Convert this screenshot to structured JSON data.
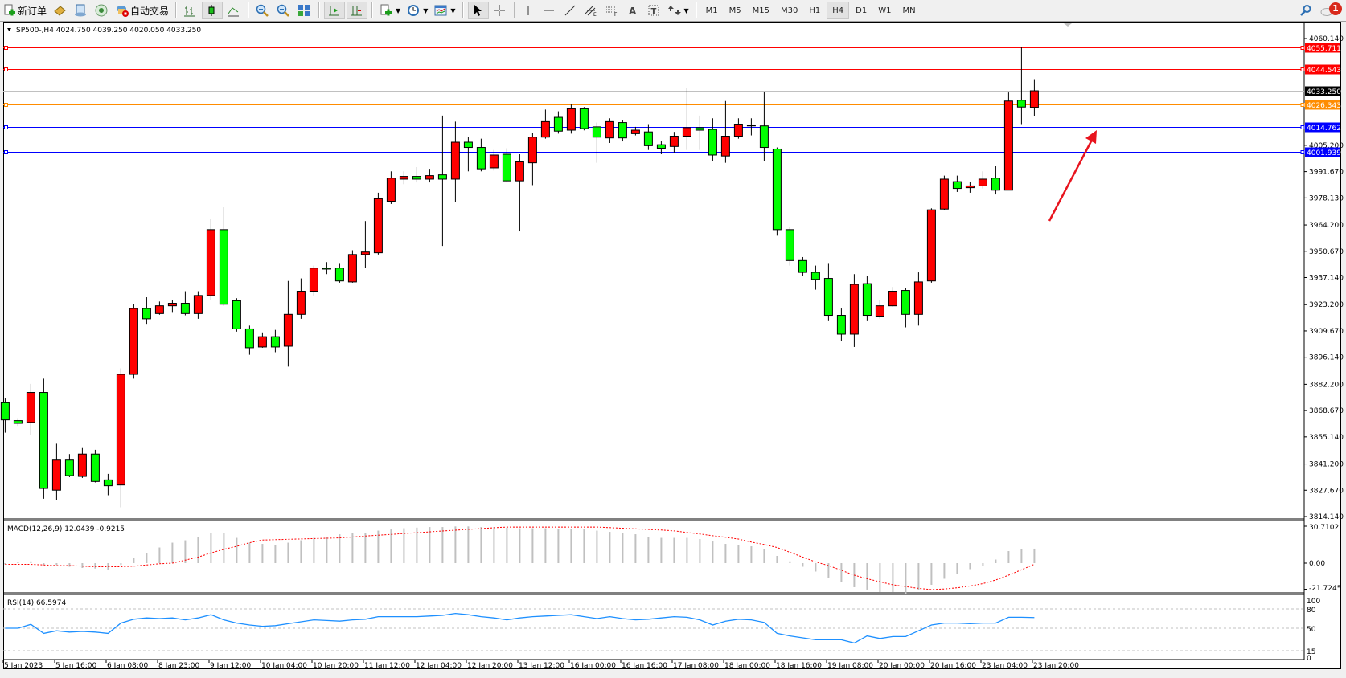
{
  "toolbar": {
    "new_order": "新订单",
    "auto_trading": "自动交易",
    "icons": [
      "new-order-icon",
      "market-watch-icon",
      "navigator-icon",
      "signals-icon",
      "auto-trading-icon",
      "bar-chart-icon",
      "candlestick-icon",
      "line-chart-icon",
      "zoom-in-icon",
      "zoom-out-icon",
      "tile-windows-icon",
      "chart-shift-icon",
      "autoscroll-icon",
      "indicators-icon",
      "periods-icon",
      "templates-icon",
      "cursor-icon",
      "crosshair-icon",
      "vertical-line-icon",
      "horizontal-line-icon",
      "trendline-icon",
      "equidistant-channel-icon",
      "fibonacci-icon",
      "text-icon",
      "text-label-icon",
      "arrows-icon",
      "search-icon",
      "notifications-icon"
    ],
    "timeframes": [
      "M1",
      "M5",
      "M15",
      "M30",
      "H1",
      "H4",
      "D1",
      "W1",
      "MN"
    ],
    "active_timeframe": "H4",
    "notification_count": "1"
  },
  "chart": {
    "header": "SP500-,H4  4024.750 4039.250 4020.050 4033.250",
    "symbol": "SP500-",
    "timeframe": "H4",
    "colors": {
      "bull": "#ff0000",
      "bear": "#00ff00",
      "wick": "#000000",
      "macd_hist": "#c0c0c0",
      "macd_signal": "#ff0000",
      "rsi": "#1e90ff",
      "arrow": "#e8141e"
    },
    "price_axis": [
      "4060.140",
      "4005.200",
      "3991.670",
      "3978.130",
      "3964.200",
      "3950.670",
      "3937.140",
      "3923.200",
      "3909.670",
      "3896.140",
      "3882.200",
      "3868.670",
      "3855.140",
      "3841.200",
      "3827.670",
      "3814.140"
    ],
    "price_range": [
      3814.14,
      4060.14
    ],
    "levels": [
      {
        "price": 4055.711,
        "label": "4055.711",
        "color": "#ff0000"
      },
      {
        "price": 4044.543,
        "label": "4044.543",
        "color": "#ff0000"
      },
      {
        "price": 4033.25,
        "label": "4033.250",
        "color": "#c0c0c0",
        "flag": "#000000"
      },
      {
        "price": 4026.343,
        "label": "4026.343",
        "color": "#ff8c00"
      },
      {
        "price": 4014.762,
        "label": "4014.762",
        "color": "#0000ff"
      },
      {
        "price": 4001.939,
        "label": "4001.939",
        "color": "#0000ff"
      }
    ],
    "time_axis": [
      "5 Jan 2023",
      "5 Jan 16:00",
      "6 Jan 08:00",
      "8 Jan 23:00",
      "9 Jan 12:00",
      "10 Jan 04:00",
      "10 Jan 20:00",
      "11 Jan 12:00",
      "12 Jan 04:00",
      "12 Jan 20:00",
      "13 Jan 12:00",
      "16 Jan 00:00",
      "16 Jan 16:00",
      "17 Jan 08:00",
      "18 Jan 00:00",
      "18 Jan 16:00",
      "19 Jan 08:00",
      "20 Jan 00:00",
      "20 Jan 16:00",
      "23 Jan 04:00",
      "23 Jan 20:00"
    ]
  },
  "chart_data": {
    "type": "candlestick",
    "ohlc": [
      [
        3872.7,
        3874.9,
        3857.3,
        3863.9
      ],
      [
        3863.5,
        3864.8,
        3860.8,
        3862.1
      ],
      [
        3862.6,
        3882.4,
        3856.0,
        3878.0
      ],
      [
        3878.0,
        3885.1,
        3823.3,
        3828.6
      ],
      [
        3827.7,
        3851.6,
        3822.5,
        3843.2
      ],
      [
        3843.2,
        3846.3,
        3834.4,
        3835.2
      ],
      [
        3834.8,
        3849.4,
        3834.0,
        3846.3
      ],
      [
        3846.3,
        3848.5,
        3831.7,
        3832.2
      ],
      [
        3833.0,
        3836.1,
        3825.1,
        3830.0
      ],
      [
        3830.4,
        3890.4,
        3818.9,
        3887.3
      ],
      [
        3887.3,
        3923.4,
        3885.1,
        3921.2
      ],
      [
        3921.2,
        3927.0,
        3913.3,
        3915.9
      ],
      [
        3918.6,
        3924.8,
        3918.0,
        3922.6
      ],
      [
        3922.6,
        3925.6,
        3919.0,
        3923.9
      ],
      [
        3923.9,
        3930.1,
        3917.7,
        3918.6
      ],
      [
        3918.6,
        3930.1,
        3915.9,
        3927.9
      ],
      [
        3927.9,
        3967.5,
        3925.6,
        3961.8
      ],
      [
        3961.8,
        3973.3,
        3922.6,
        3923.4
      ],
      [
        3925.2,
        3926.5,
        3909.3,
        3910.7
      ],
      [
        3910.7,
        3912.4,
        3897.4,
        3901.0
      ],
      [
        3901.4,
        3908.9,
        3901.0,
        3906.7
      ],
      [
        3906.7,
        3910.2,
        3898.7,
        3901.4
      ],
      [
        3901.8,
        3935.4,
        3891.3,
        3918.2
      ],
      [
        3918.2,
        3936.7,
        3915.9,
        3930.1
      ],
      [
        3930.1,
        3943.3,
        3927.9,
        3942.0
      ],
      [
        3942.0,
        3945.1,
        3938.9,
        3941.5
      ],
      [
        3942.0,
        3944.2,
        3934.5,
        3935.4
      ],
      [
        3934.9,
        3951.2,
        3934.5,
        3949.0
      ],
      [
        3949.0,
        3966.2,
        3942.0,
        3950.3
      ],
      [
        3949.9,
        3980.8,
        3949.0,
        3977.7
      ],
      [
        3976.4,
        3991.8,
        3975.0,
        3988.3
      ],
      [
        3987.8,
        3991.8,
        3985.2,
        3989.2
      ],
      [
        3989.2,
        3994.0,
        3986.1,
        3987.8
      ],
      [
        3987.8,
        3993.1,
        3986.1,
        3989.6
      ],
      [
        3990.0,
        4020.5,
        3953.4,
        3987.8
      ],
      [
        3987.8,
        4017.4,
        3975.9,
        4006.8
      ],
      [
        4006.8,
        4009.4,
        3991.8,
        4004.1
      ],
      [
        4004.1,
        4008.6,
        3991.8,
        3993.1
      ],
      [
        3993.6,
        4002.8,
        3992.2,
        4000.2
      ],
      [
        4000.6,
        4003.7,
        3986.1,
        3986.9
      ],
      [
        3986.9,
        4000.6,
        3960.9,
        3996.7
      ],
      [
        3996.2,
        4011.6,
        3984.7,
        4009.4
      ],
      [
        4009.4,
        4023.6,
        4008.6,
        4017.4
      ],
      [
        4019.6,
        4022.7,
        4011.2,
        4012.5
      ],
      [
        4013.0,
        4026.2,
        4011.2,
        4024.0
      ],
      [
        4024.0,
        4024.9,
        4012.9,
        4013.8
      ],
      [
        4014.7,
        4016.9,
        3996.2,
        4009.4
      ],
      [
        4009.0,
        4019.1,
        4006.4,
        4017.4
      ],
      [
        4016.9,
        4018.3,
        4007.2,
        4009.0
      ],
      [
        4011.2,
        4014.7,
        4010.3,
        4013.0
      ],
      [
        4012.1,
        4016.1,
        4002.8,
        4005.0
      ],
      [
        4005.5,
        4007.2,
        4000.6,
        4003.7
      ],
      [
        4004.6,
        4012.1,
        4001.5,
        4009.9
      ],
      [
        4009.9,
        4034.6,
        4002.8,
        4014.3
      ],
      [
        4014.3,
        4020.5,
        4002.8,
        4013.0
      ],
      [
        4013.4,
        4019.1,
        3997.1,
        4000.2
      ],
      [
        3999.7,
        4028.0,
        3996.2,
        4009.9
      ],
      [
        4009.9,
        4019.1,
        4008.6,
        4016.1
      ],
      [
        4015.6,
        4019.1,
        4010.3,
        4015.2
      ],
      [
        4015.2,
        4032.8,
        3997.1,
        4004.1
      ],
      [
        4003.3,
        4004.1,
        3958.7,
        3961.8
      ],
      [
        3961.8,
        3963.1,
        3943.3,
        3945.9
      ],
      [
        3945.9,
        3947.7,
        3938.0,
        3939.8
      ],
      [
        3939.8,
        3943.3,
        3930.9,
        3936.2
      ],
      [
        3936.7,
        3944.2,
        3915.1,
        3917.7
      ],
      [
        3917.7,
        3921.2,
        3904.5,
        3908.0
      ],
      [
        3908.0,
        3938.9,
        3901.4,
        3933.6
      ],
      [
        3934.0,
        3938.0,
        3915.1,
        3917.7
      ],
      [
        3917.3,
        3925.6,
        3916.0,
        3922.6
      ],
      [
        3922.6,
        3932.3,
        3922.1,
        3930.1
      ],
      [
        3930.5,
        3931.8,
        3911.5,
        3918.2
      ],
      [
        3918.2,
        3939.8,
        3912.4,
        3934.9
      ],
      [
        3935.4,
        3972.8,
        3934.5,
        3972.0
      ],
      [
        3972.4,
        3989.6,
        3972.0,
        3987.8
      ],
      [
        3986.5,
        3989.6,
        3981.2,
        3983.0
      ],
      [
        3983.4,
        3986.5,
        3980.8,
        3984.3
      ],
      [
        3984.3,
        3991.8,
        3983.0,
        3987.8
      ],
      [
        3988.3,
        3994.4,
        3979.9,
        3982.1
      ],
      [
        3982.1,
        4032.4,
        3982.1,
        4028.0
      ],
      [
        4028.4,
        4055.7,
        4016.1,
        4024.9
      ],
      [
        4024.75,
        4039.25,
        4020.05,
        4033.25
      ]
    ],
    "macd": {
      "label": "MACD(12,26,9) 12.0439 -0.9215",
      "axis": [
        "30.7102",
        "0.00",
        "-21.7245"
      ],
      "range": [
        -21.7245,
        30.7102
      ],
      "histogram": [
        -1,
        1,
        1.5,
        -1.5,
        -1.5,
        -3,
        -4,
        -4.5,
        -6,
        -1.5,
        4,
        8,
        13,
        17,
        19,
        22,
        25,
        25,
        21,
        17,
        16,
        15,
        17,
        19,
        21,
        22,
        24,
        25,
        25,
        27,
        28,
        29,
        29.5,
        30,
        30,
        30.5,
        30.5,
        30,
        30,
        29.5,
        29,
        29,
        29,
        28.5,
        28.5,
        28,
        27,
        26,
        25,
        24,
        22,
        21,
        21,
        21,
        20,
        18,
        16,
        15,
        14,
        12,
        6,
        1.5,
        -3,
        -7,
        -12,
        -16,
        -20,
        -22,
        -24,
        -24,
        -25,
        -22,
        -18,
        -13,
        -9,
        -5,
        -2,
        3,
        10,
        12,
        12.0439
      ],
      "signal": [
        -1,
        -1,
        -1,
        -1.5,
        -2,
        -2,
        -2.5,
        -3,
        -3,
        -3,
        -2.5,
        -1.5,
        -0.5,
        0,
        2.5,
        5,
        8.5,
        11.5,
        14,
        17,
        19.2,
        19.5,
        19.8,
        20.1,
        20.4,
        20.7,
        21,
        21.7,
        22.5,
        23.2,
        23.9,
        24.6,
        25.3,
        26,
        26.7,
        27.4,
        28.1,
        28.7,
        29.4,
        30,
        30,
        30,
        30,
        30,
        30,
        30,
        30,
        29.5,
        29,
        28.5,
        28,
        27.5,
        26.8,
        25.5,
        24.2,
        22.8,
        21.5,
        20,
        17.5,
        15.5,
        13,
        9,
        5,
        1,
        -2,
        -6,
        -10,
        -13,
        -15.5,
        -18,
        -19.5,
        -21,
        -22,
        -21.5,
        -20.5,
        -19,
        -17,
        -14,
        -10,
        -5.5,
        -0.9215
      ]
    },
    "rsi": {
      "label": "RSI(14) 66.5974",
      "axis": [
        "100",
        "80",
        "50",
        "15",
        "0"
      ],
      "levels": [
        80,
        50,
        15
      ],
      "values": [
        50,
        50,
        56,
        42,
        46,
        44,
        45,
        44,
        42,
        58,
        64,
        66,
        65,
        66,
        63,
        66,
        71,
        63,
        58,
        55,
        53,
        54,
        57,
        60,
        63,
        62,
        61,
        63,
        64,
        68,
        68,
        68,
        68,
        69,
        70,
        73,
        71,
        68,
        66,
        63,
        66,
        68,
        69,
        70,
        71,
        68,
        65,
        68,
        65,
        63,
        64,
        66,
        68,
        67,
        63,
        55,
        61,
        64,
        63,
        59,
        42,
        38,
        35,
        32,
        32,
        32,
        27,
        38,
        34,
        37,
        37,
        46,
        55,
        58,
        58,
        57,
        58,
        58,
        67,
        67,
        66.5974
      ]
    }
  }
}
